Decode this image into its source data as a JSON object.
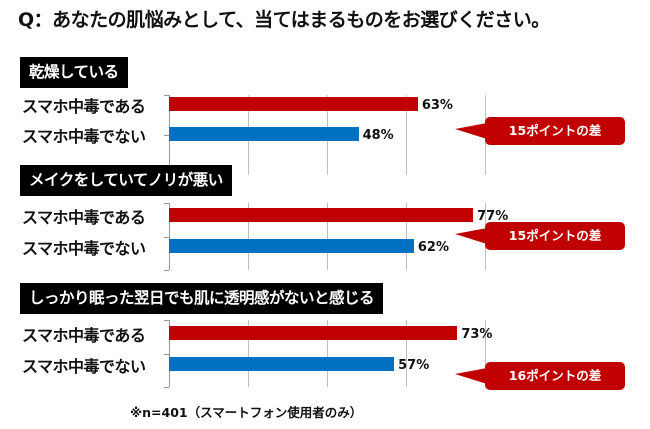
{
  "title": "Q：あなたの肌悩みとして、当てはまるものをお選びください。",
  "footnote": "※n=401（スマートフォン使用者のみ）",
  "colors": {
    "addicted": "#c00000",
    "not_addicted": "#0070c0",
    "callout": "#c00000",
    "header_bg": "#000000"
  },
  "chart_data": {
    "type": "bar",
    "orientation": "horizontal",
    "xlim": [
      0,
      80
    ],
    "grid": true,
    "groups": [
      {
        "title": "乾燥している",
        "categories": [
          "スマホ中毒である",
          "スマホ中毒でない"
        ],
        "values": [
          63,
          48
        ],
        "labels": [
          "63%",
          "48%"
        ],
        "annotation": "15ポイントの差"
      },
      {
        "title": "メイクをしていてノリが悪い",
        "categories": [
          "スマホ中毒である",
          "スマホ中毒でない"
        ],
        "values": [
          77,
          62
        ],
        "labels": [
          "77%",
          "62%"
        ],
        "annotation": "15ポイントの差"
      },
      {
        "title": "しっかり眠った翌日でも肌に透明感がないと感じる",
        "categories": [
          "スマホ中毒である",
          "スマホ中毒でない"
        ],
        "values": [
          73,
          57
        ],
        "labels": [
          "73%",
          "57%"
        ],
        "annotation": "16ポイントの差"
      }
    ]
  }
}
